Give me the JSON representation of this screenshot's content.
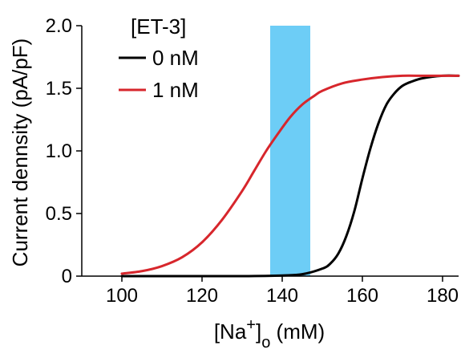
{
  "chart_data": {
    "type": "line",
    "xlabel": {
      "base": "[Na",
      "sup": "+",
      "close": "]",
      "sub": "o",
      "unit": " (mM)"
    },
    "ylabel": "Current dennsity (pA/pF)",
    "xlim": [
      90,
      184
    ],
    "ylim": [
      0,
      2.0
    ],
    "xticks": [
      100,
      120,
      140,
      160,
      180
    ],
    "yticks": [
      0,
      0.5,
      1.0,
      1.5,
      2.0
    ],
    "ytick_labels": [
      "0",
      "0.5",
      "1.0",
      "1.5",
      "2.0"
    ],
    "grid": false,
    "legend": {
      "title": "[ET-3]",
      "position": "top-left"
    },
    "shaded_region": {
      "x": [
        137,
        147
      ],
      "color": "#6dcdf6"
    },
    "series": [
      {
        "name": "0 nM",
        "color": "#000000",
        "x": [
          100,
          110,
          120,
          130,
          140,
          145,
          150,
          152,
          154,
          156,
          158,
          160,
          162,
          164,
          166,
          168,
          170,
          172,
          175,
          180,
          184
        ],
        "y": [
          0,
          0,
          0,
          0,
          0.005,
          0.015,
          0.06,
          0.1,
          0.18,
          0.32,
          0.52,
          0.78,
          1.02,
          1.22,
          1.37,
          1.46,
          1.52,
          1.55,
          1.58,
          1.6,
          1.6
        ]
      },
      {
        "name": "1 nM",
        "color": "#d7262c",
        "x": [
          100,
          105,
          110,
          115,
          120,
          125,
          130,
          133,
          136,
          139,
          142,
          145,
          148,
          150,
          155,
          160,
          165,
          170,
          175,
          180,
          184
        ],
        "y": [
          0.02,
          0.04,
          0.08,
          0.15,
          0.27,
          0.45,
          0.68,
          0.84,
          1.0,
          1.14,
          1.27,
          1.37,
          1.44,
          1.48,
          1.54,
          1.57,
          1.59,
          1.6,
          1.6,
          1.6,
          1.6
        ]
      }
    ]
  }
}
